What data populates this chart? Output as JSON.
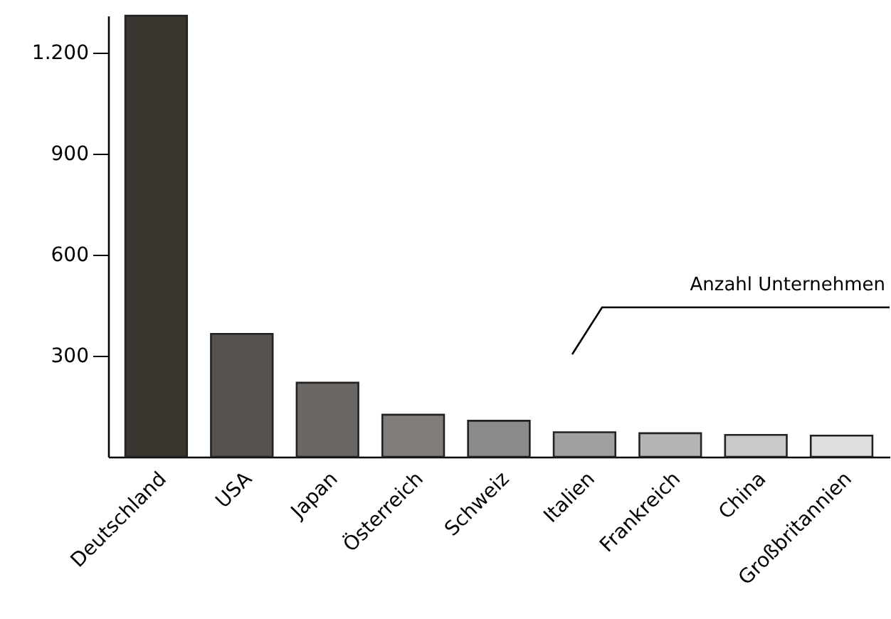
{
  "chart_data": {
    "type": "bar",
    "categories": [
      "Deutschland",
      "USA",
      "Japan",
      "Österreich",
      "Schweiz",
      "Italien",
      "Frankreich",
      "China",
      "Großbritannien"
    ],
    "values": [
      1310,
      365,
      220,
      125,
      107,
      73,
      70,
      65,
      63
    ],
    "colors": [
      "#3c3631",
      "#57524d",
      "#6b6764",
      "#807d7a",
      "#8d8b89",
      "#a09f9e",
      "#b4b4b3",
      "#c9c9c8",
      "#dfdfdf"
    ],
    "ylim": [
      0,
      1310
    ],
    "yticks": [
      {
        "value": 300,
        "label": "300"
      },
      {
        "value": 600,
        "label": "600"
      },
      {
        "value": 900,
        "label": "900"
      },
      {
        "value": 1200,
        "label": "1.200"
      }
    ],
    "annotations": [
      "Anzahl Unternehmen"
    ]
  }
}
